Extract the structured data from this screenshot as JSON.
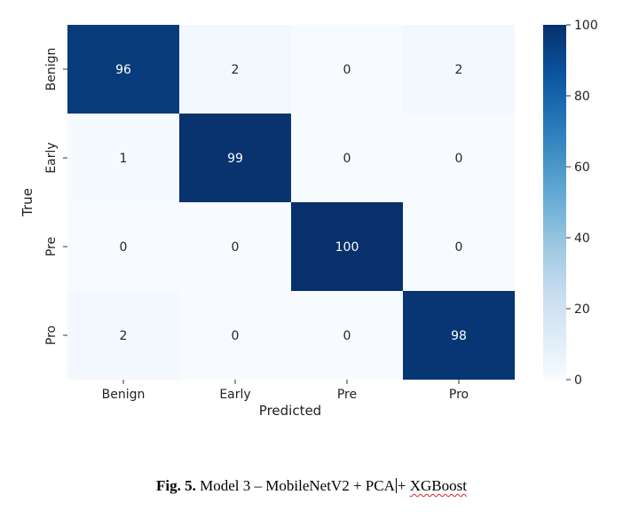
{
  "chart_data": {
    "type": "heatmap",
    "xlabel": "Predicted",
    "ylabel": "True",
    "x_categories": [
      "Benign",
      "Early",
      "Pre",
      "Pro"
    ],
    "y_categories": [
      "Benign",
      "Early",
      "Pre",
      "Pro"
    ],
    "values": [
      [
        96,
        2,
        0,
        2
      ],
      [
        1,
        99,
        0,
        0
      ],
      [
        0,
        0,
        100,
        0
      ],
      [
        2,
        0,
        0,
        98
      ]
    ],
    "colormap": "Blues",
    "colorbar": {
      "range": [
        0,
        100
      ],
      "ticks": [
        0,
        20,
        40,
        60,
        80,
        100
      ]
    },
    "colors": {
      "low": "#f7fbff",
      "high": "#08306b"
    }
  },
  "caption": {
    "label": "Fig. 5.",
    "text_before_cursor": "Model 3 – MobileNetV2 + PCA",
    "text_after_cursor": "+ ",
    "underlined_word": "XGBoost"
  }
}
